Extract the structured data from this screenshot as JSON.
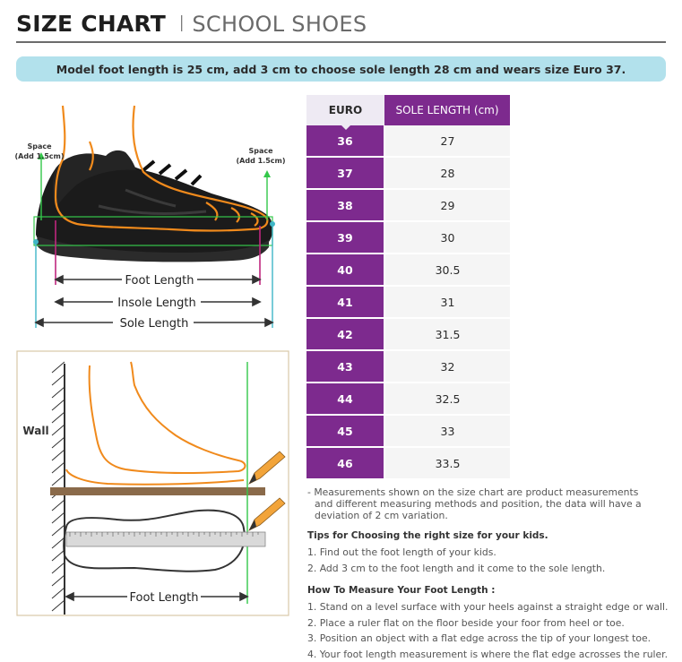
{
  "header": {
    "title": "SIZE CHART",
    "separator": "I",
    "subtitle": "SCHOOL SHOES"
  },
  "banner": {
    "text": "Model foot length is 25 cm, add 3 cm to choose sole length 28 cm and wears size Euro 37."
  },
  "shoe_diagram": {
    "space_left_line1": "Space",
    "space_left_line2": "(Add 1.5cm)",
    "space_right_line1": "Space",
    "space_right_line2": "(Add 1.5cm)",
    "foot_length": "Foot Length",
    "insole_length": "Insole Length",
    "sole_length": "Sole Length"
  },
  "measure_diagram": {
    "wall": "Wall",
    "foot_length": "Foot Length"
  },
  "size_table": {
    "headers": {
      "euro": "EURO",
      "sole": "SOLE LENGTH (cm)"
    },
    "rows": [
      {
        "euro": "36",
        "sole": "27"
      },
      {
        "euro": "37",
        "sole": "28"
      },
      {
        "euro": "38",
        "sole": "29"
      },
      {
        "euro": "39",
        "sole": "30"
      },
      {
        "euro": "40",
        "sole": "30.5"
      },
      {
        "euro": "41",
        "sole": "31"
      },
      {
        "euro": "42",
        "sole": "31.5"
      },
      {
        "euro": "43",
        "sole": "32"
      },
      {
        "euro": "44",
        "sole": "32.5"
      },
      {
        "euro": "45",
        "sole": "33"
      },
      {
        "euro": "46",
        "sole": "33.5"
      }
    ]
  },
  "notes": {
    "disclaimer_line1": "- Measurements shown on the size chart are product measurements",
    "disclaimer_line2": "and different measuring methods and position, the data will have a",
    "disclaimer_line3": "deviation of 2 cm variation.",
    "tips_title": "Tips for Choosing the right size for your kids.",
    "tips": [
      "1. Find out the foot length of your kids.",
      "2. Add 3 cm to the foot length and it come to the sole length."
    ],
    "howto_title": "How To Measure Your Foot Length :",
    "howto": [
      "1. Stand on a level surface with your heels against a straight edge or wall.",
      "2. Place a ruler flat on the floor beside your foor from heel or toe.",
      "3. Position an object with a flat edge across the tip of your longest toe.",
      "4. Your foot length measurement is where the flat edge acrosses the ruler."
    ]
  },
  "colors": {
    "purple": "#7d2a8e",
    "banner_bg": "#b2e1ec",
    "foot_outline": "#f08a1c",
    "green": "#34c84a",
    "magenta": "#c0277e",
    "teal": "#3fb6c7"
  }
}
